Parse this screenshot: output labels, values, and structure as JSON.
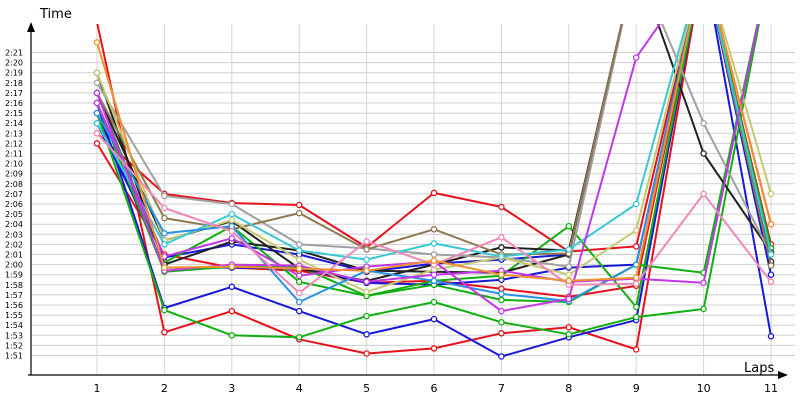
{
  "chart_data": {
    "type": "line",
    "ylabel": "Time",
    "xlabel": "Laps",
    "x": [
      1,
      2,
      3,
      4,
      5,
      6,
      7,
      8,
      9,
      10,
      11
    ],
    "x_tick_labels": [
      "1",
      "2",
      "3",
      "4",
      "5",
      "6",
      "7",
      "8",
      "9",
      "10",
      "11"
    ],
    "y_tick_labels": [
      "1:51",
      "1:52",
      "1:53",
      "1:54",
      "1:55",
      "1:56",
      "1:57",
      "1:58",
      "1:59",
      "2:00",
      "2:01",
      "2:02",
      "2:03",
      "2:04",
      "2:05",
      "2:06",
      "2:07",
      "2:08",
      "2:09",
      "2:10",
      "2:11",
      "2:12",
      "2:13",
      "2:14",
      "2:15",
      "2:16",
      "2:17",
      "2:18",
      "2:19",
      "2:20",
      "2:21"
    ],
    "ylim_seconds": [
      110,
      142
    ],
    "grid": true,
    "marker": "circle",
    "series": [
      {
        "color": "#e8101a",
        "values": [
          133,
          127,
          126.1,
          125.9,
          121.7,
          127.1,
          125.7,
          121.3,
          121.8,
          150,
          124.0
        ]
      },
      {
        "color": "#e8101a",
        "values": [
          144,
          113.3,
          115.4,
          112.6,
          111.2,
          111.7,
          113.2,
          113.8,
          111.6,
          150,
          150
        ]
      },
      {
        "color": "#e8101a",
        "values": [
          132,
          121.0,
          119.7,
          119.4,
          118.2,
          118.4,
          117.6,
          116.8,
          117.9,
          150,
          122.0
        ]
      },
      {
        "color": "#1818d8",
        "values": [
          136,
          115.7,
          117.8,
          115.4,
          113.1,
          114.6,
          110.9,
          112.8,
          114.5,
          150,
          112.9
        ]
      },
      {
        "color": "#1818d8",
        "values": [
          135,
          119.7,
          119.7,
          119.6,
          118.2,
          118.0,
          118.5,
          119.7,
          120.0,
          150,
          120.0
        ]
      },
      {
        "color": "#1818d8",
        "values": [
          134,
          120.7,
          122.0,
          121.0,
          119.3,
          120.1,
          120.5,
          121.0,
          150,
          150,
          119.0
        ]
      },
      {
        "color": "#10b010",
        "values": [
          135,
          115.5,
          113.0,
          112.8,
          114.9,
          116.3,
          114.3,
          113.1,
          114.8,
          115.6,
          150
        ]
      },
      {
        "color": "#10b010",
        "values": [
          136,
          119.3,
          119.8,
          119.8,
          116.9,
          118.0,
          116.5,
          116.3,
          120.0,
          119.2,
          150
        ]
      },
      {
        "color": "#10b010",
        "values": [
          137,
          120.2,
          123.8,
          118.3,
          116.9,
          118.4,
          118.9,
          123.8,
          115.8,
          150,
          121.6
        ]
      },
      {
        "color": "#222222",
        "values": [
          137,
          122.4,
          124.3,
          119.6,
          118.4,
          120.0,
          121.7,
          121.4,
          150,
          131.0,
          121.2
        ]
      },
      {
        "color": "#222222",
        "values": [
          139,
          120.0,
          122.3,
          121.4,
          119.4,
          119.3,
          119.2,
          121.0,
          150,
          150,
          120.3
        ]
      },
      {
        "color": "#a0a0a0",
        "values": [
          138,
          126.8,
          126.0,
          122.0,
          121.6,
          121.0,
          120.7,
          119.8,
          150,
          134.0,
          121.0
        ]
      },
      {
        "color": "#8c7a50",
        "values": [
          137,
          124.6,
          123.5,
          125.1,
          121.5,
          123.5,
          121.0,
          121.1,
          150,
          150,
          119.9
        ]
      },
      {
        "color": "#c8c870",
        "values": [
          139,
          122.4,
          124.4,
          120.5,
          117.3,
          119.5,
          120.7,
          119.0,
          123.4,
          150,
          127.0
        ]
      },
      {
        "color": "#38c8d8",
        "values": [
          134,
          122.0,
          125.0,
          121.4,
          120.5,
          122.1,
          120.8,
          121.5,
          126.0,
          150,
          121.0
        ]
      },
      {
        "color": "#2a90e8",
        "values": [
          135,
          123.1,
          123.8,
          116.3,
          119.4,
          118.4,
          117.1,
          116.4,
          120.0,
          150,
          150
        ]
      },
      {
        "color": "#c038e8",
        "values": [
          136,
          120.8,
          122.6,
          118.9,
          119.8,
          120.3,
          115.4,
          116.6,
          140.5,
          150,
          150
        ]
      },
      {
        "color": "#c038e8",
        "values": [
          137,
          119.4,
          120.0,
          119.9,
          118.3,
          119.0,
          119.4,
          118.3,
          118.6,
          118.2,
          150
        ]
      },
      {
        "color": "#f088b8",
        "values": [
          133,
          125.6,
          123.3,
          117.2,
          122.3,
          120.0,
          122.7,
          118.0,
          118.1,
          127.0,
          118.3
        ]
      },
      {
        "color": "#f09030",
        "values": [
          142,
          119.7,
          119.8,
          119.6,
          119.4,
          120.4,
          119.0,
          118.4,
          118.7,
          150,
          124.0
        ]
      }
    ]
  }
}
